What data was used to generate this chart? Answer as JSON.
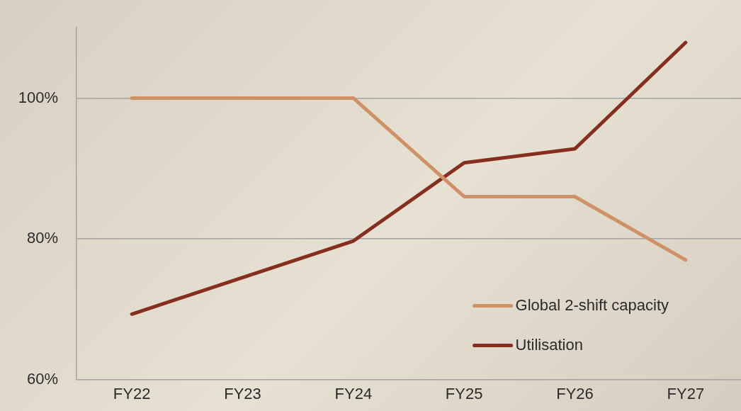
{
  "chart_data": {
    "type": "line",
    "categories": [
      "FY22",
      "FY23",
      "FY24",
      "FY25",
      "FY26",
      "FY27"
    ],
    "series": [
      {
        "name": "Global 2-shift capacity",
        "color": "#cf9266",
        "values": [
          100,
          100,
          100,
          86,
          86,
          77
        ]
      },
      {
        "name": "Utilisation",
        "color": "#862f1f",
        "values": [
          69.3,
          74.5,
          79.7,
          90.8,
          92.8,
          107.9
        ]
      }
    ],
    "ylim": [
      60,
      110
    ],
    "yticks": [
      {
        "value": 60,
        "label": "60%"
      },
      {
        "value": 80,
        "label": "80%"
      },
      {
        "value": 100,
        "label": "100%"
      }
    ],
    "grid": "y",
    "legend": "bottom right",
    "marker": "none",
    "line_style": "solid"
  }
}
